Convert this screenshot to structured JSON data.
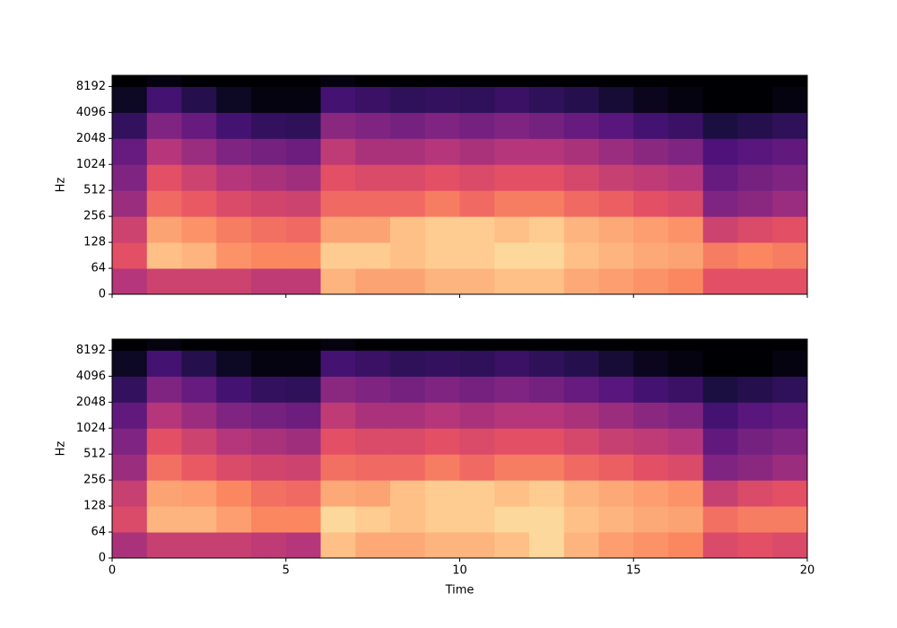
{
  "chart_data": [
    {
      "type": "heatmap",
      "colormap": "magma",
      "zlim": [
        -80,
        0
      ],
      "ylabel": "Hz",
      "show_xticklabels": false,
      "yscale": "symlog",
      "linthresh": 64,
      "base": 2,
      "xlim": [
        0,
        20
      ],
      "xticks": [
        0,
        5,
        10,
        15,
        20
      ],
      "ylim": [
        0,
        11025
      ],
      "yticks": [
        0,
        64,
        128,
        256,
        512,
        1024,
        2048,
        4096,
        8192
      ],
      "xbins": [
        0,
        1,
        2,
        3,
        4,
        5,
        6,
        7,
        8,
        9,
        10,
        11,
        12,
        13,
        14,
        15,
        16,
        17,
        18,
        19,
        20
      ],
      "ybins": [
        0,
        64,
        128,
        256,
        512,
        1024,
        2048,
        4096,
        8192,
        11025
      ],
      "z": [
        [
          -40,
          -35,
          -35,
          -35,
          -38,
          -38,
          -12,
          -15,
          -15,
          -12,
          -12,
          -10,
          -10,
          -14,
          -16,
          -18,
          -20,
          -30,
          -30,
          -30
        ],
        [
          -30,
          -10,
          -12,
          -18,
          -20,
          -20,
          -8,
          -8,
          -10,
          -8,
          -8,
          -6,
          -6,
          -10,
          -12,
          -14,
          -15,
          -22,
          -20,
          -22
        ],
        [
          -35,
          -15,
          -18,
          -22,
          -24,
          -25,
          -15,
          -15,
          -10,
          -8,
          -8,
          -10,
          -8,
          -12,
          -14,
          -16,
          -18,
          -35,
          -32,
          -30
        ],
        [
          -45,
          -25,
          -28,
          -32,
          -34,
          -35,
          -25,
          -25,
          -25,
          -22,
          -25,
          -22,
          -22,
          -25,
          -27,
          -30,
          -32,
          -50,
          -48,
          -45
        ],
        [
          -50,
          -30,
          -35,
          -40,
          -42,
          -44,
          -30,
          -32,
          -32,
          -30,
          -32,
          -30,
          -30,
          -33,
          -36,
          -38,
          -40,
          -55,
          -52,
          -50
        ],
        [
          -55,
          -40,
          -45,
          -50,
          -52,
          -54,
          -38,
          -42,
          -42,
          -40,
          -42,
          -40,
          -40,
          -42,
          -45,
          -48,
          -50,
          -60,
          -58,
          -56
        ],
        [
          -65,
          -50,
          -55,
          -62,
          -65,
          -66,
          -48,
          -50,
          -52,
          -50,
          -52,
          -50,
          -52,
          -55,
          -58,
          -62,
          -64,
          -70,
          -68,
          -66
        ],
        [
          -75,
          -62,
          -68,
          -75,
          -78,
          -78,
          -62,
          -64,
          -66,
          -65,
          -66,
          -64,
          -66,
          -68,
          -72,
          -76,
          -78,
          -80,
          -80,
          -78
        ],
        [
          -80,
          -78,
          -80,
          -80,
          -80,
          -80,
          -78,
          -80,
          -80,
          -80,
          -80,
          -80,
          -80,
          -80,
          -80,
          -80,
          -80,
          -80,
          -80,
          -80
        ]
      ]
    },
    {
      "type": "heatmap",
      "colormap": "magma",
      "zlim": [
        -80,
        0
      ],
      "ylabel": "Hz",
      "xlabel": "Time",
      "show_xticklabels": true,
      "yscale": "symlog",
      "linthresh": 64,
      "base": 2,
      "xlim": [
        0,
        20
      ],
      "xticks": [
        0,
        5,
        10,
        15,
        20
      ],
      "ylim": [
        0,
        11025
      ],
      "yticks": [
        0,
        64,
        128,
        256,
        512,
        1024,
        2048,
        4096,
        8192
      ],
      "xbins": [
        0,
        1,
        2,
        3,
        4,
        5,
        6,
        7,
        8,
        9,
        10,
        11,
        12,
        13,
        14,
        15,
        16,
        17,
        18,
        19,
        20
      ],
      "ybins": [
        0,
        64,
        128,
        256,
        512,
        1024,
        2048,
        4096,
        8192,
        11025
      ],
      "z": [
        [
          -42,
          -36,
          -36,
          -36,
          -38,
          -40,
          -10,
          -14,
          -14,
          -12,
          -12,
          -10,
          -6,
          -12,
          -16,
          -18,
          -20,
          -32,
          -30,
          -32
        ],
        [
          -32,
          -12,
          -12,
          -16,
          -20,
          -20,
          -6,
          -8,
          -10,
          -8,
          -8,
          -6,
          -6,
          -10,
          -12,
          -14,
          -15,
          -24,
          -22,
          -22
        ],
        [
          -36,
          -15,
          -16,
          -20,
          -24,
          -25,
          -14,
          -15,
          -10,
          -8,
          -8,
          -10,
          -8,
          -12,
          -14,
          -16,
          -18,
          -36,
          -32,
          -30
        ],
        [
          -45,
          -24,
          -28,
          -32,
          -34,
          -35,
          -24,
          -25,
          -25,
          -22,
          -25,
          -22,
          -22,
          -25,
          -27,
          -30,
          -32,
          -50,
          -48,
          -45
        ],
        [
          -50,
          -30,
          -35,
          -40,
          -42,
          -44,
          -30,
          -32,
          -32,
          -30,
          -32,
          -30,
          -30,
          -33,
          -36,
          -38,
          -40,
          -56,
          -52,
          -50
        ],
        [
          -56,
          -40,
          -45,
          -50,
          -52,
          -54,
          -38,
          -42,
          -42,
          -40,
          -42,
          -40,
          -40,
          -42,
          -45,
          -48,
          -50,
          -62,
          -58,
          -56
        ],
        [
          -65,
          -50,
          -55,
          -62,
          -65,
          -66,
          -48,
          -50,
          -52,
          -50,
          -52,
          -50,
          -52,
          -55,
          -58,
          -62,
          -64,
          -70,
          -68,
          -66
        ],
        [
          -75,
          -62,
          -68,
          -75,
          -78,
          -78,
          -62,
          -64,
          -66,
          -65,
          -66,
          -64,
          -66,
          -68,
          -72,
          -76,
          -78,
          -80,
          -80,
          -78
        ],
        [
          -80,
          -78,
          -80,
          -80,
          -80,
          -80,
          -78,
          -80,
          -80,
          -80,
          -80,
          -80,
          -80,
          -80,
          -80,
          -80,
          -80,
          -80,
          -80,
          -80
        ]
      ]
    }
  ]
}
